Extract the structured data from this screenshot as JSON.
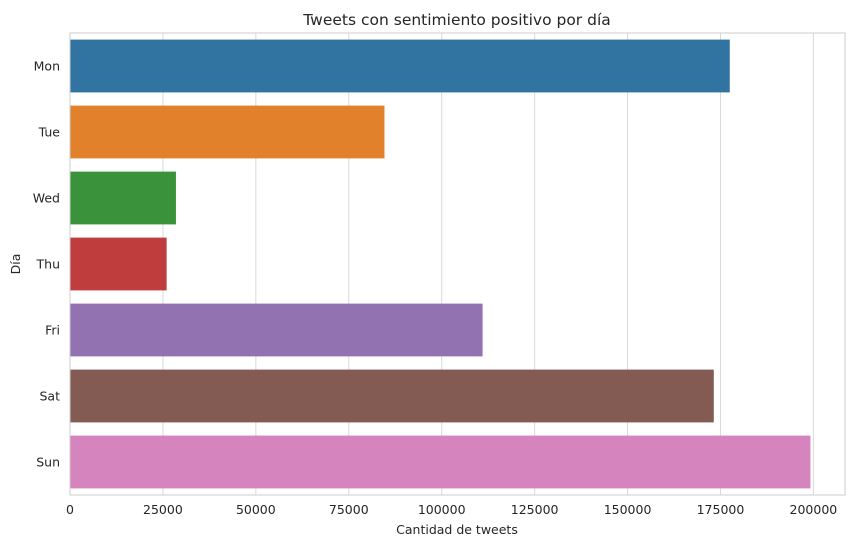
{
  "chart_data": {
    "type": "bar",
    "orientation": "horizontal",
    "title": "Tweets con sentimiento positivo por día",
    "xlabel": "Cantidad de tweets",
    "ylabel": "Día",
    "categories": [
      "Mon",
      "Tue",
      "Wed",
      "Thu",
      "Fri",
      "Sat",
      "Sun"
    ],
    "values": [
      177500,
      84600,
      28500,
      26000,
      111000,
      173200,
      199200
    ],
    "colors": [
      "#3274a1",
      "#e1812c",
      "#3a923a",
      "#c03d3e",
      "#9372b2",
      "#845b53",
      "#d684bd"
    ],
    "xlim": [
      0,
      208500
    ],
    "xticks": [
      0,
      25000,
      50000,
      75000,
      100000,
      125000,
      150000,
      175000,
      200000
    ],
    "xtick_labels": [
      "0",
      "25000",
      "50000",
      "75000",
      "100000",
      "125000",
      "150000",
      "175000",
      "200000"
    ],
    "grid": "vertical",
    "style": {
      "background": "#ffffff",
      "grid_color": "#d9d9d9",
      "spine_color": "#cccccc",
      "text_color": "#262626"
    }
  }
}
